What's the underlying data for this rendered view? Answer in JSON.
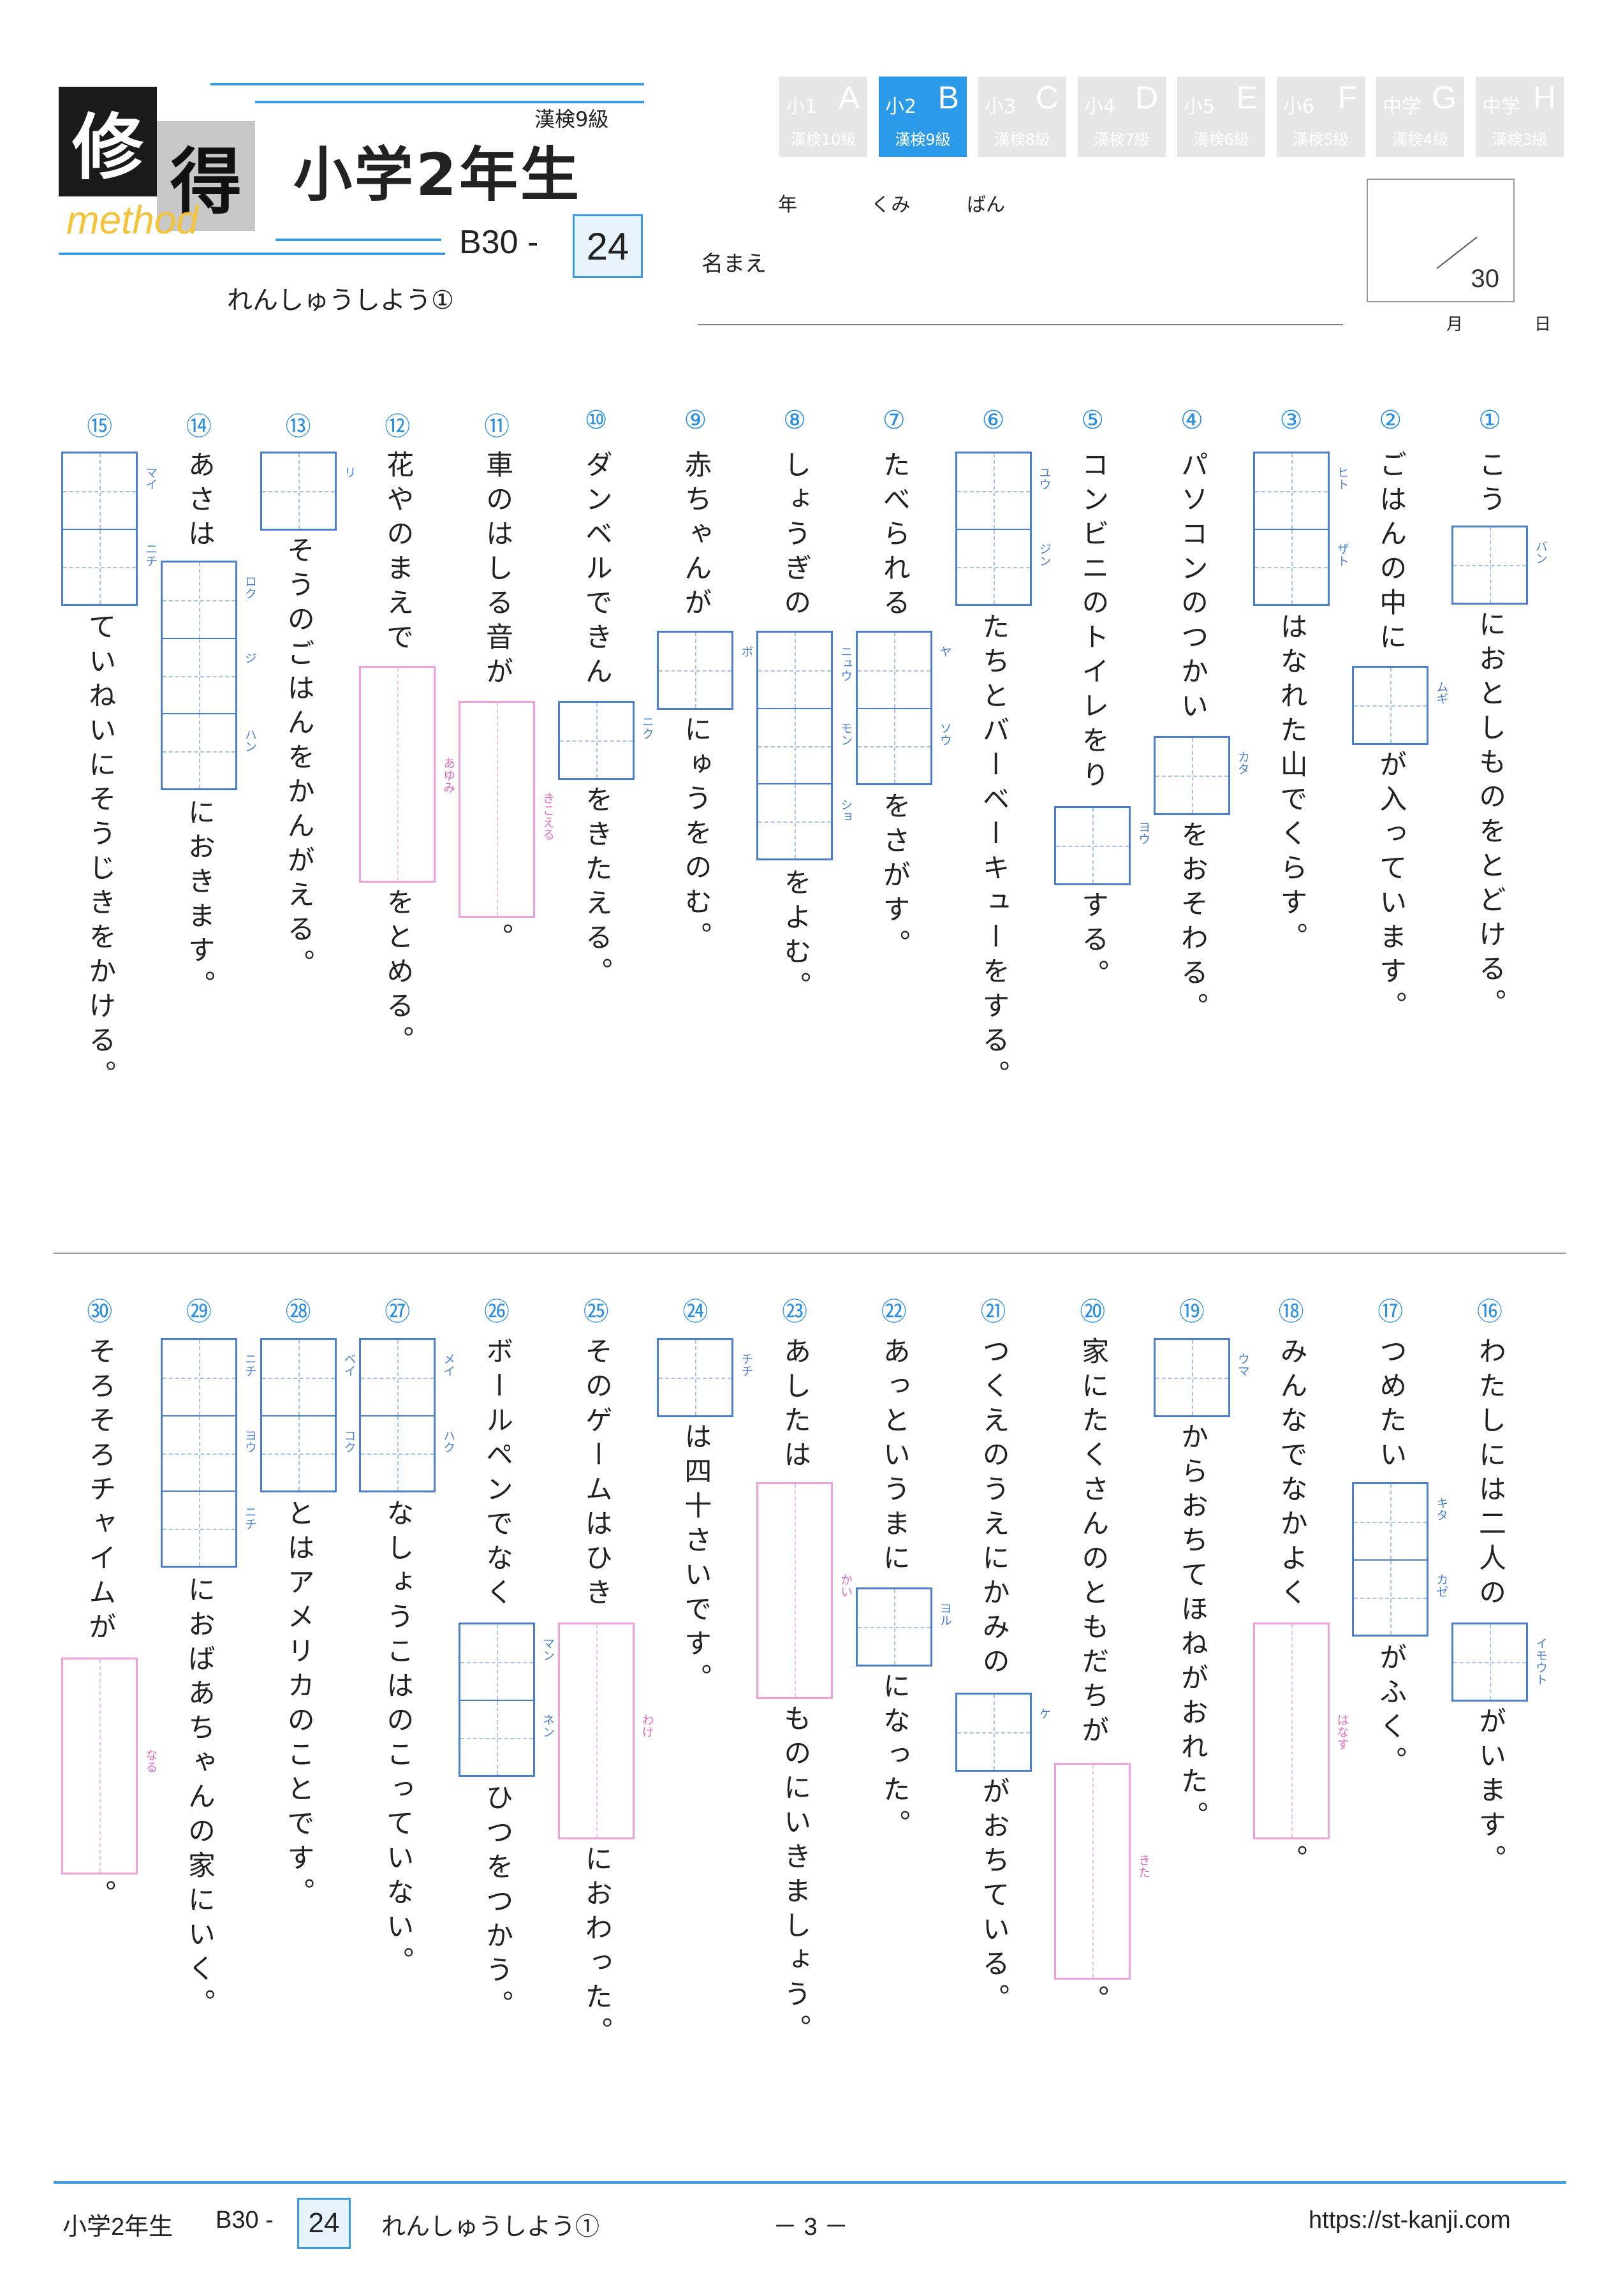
{
  "header": {
    "logo_chars": [
      "修",
      "得"
    ],
    "logo_sub": "method",
    "grade": "小学2年生",
    "kanken_level": "漢検9級",
    "code": "B30 -",
    "code_num": "24",
    "subtitle": "れんしゅうしよう①",
    "name_label": "名まえ",
    "year_label": "年",
    "class_label": "くみ",
    "number_label": "ばん",
    "score_total": "30",
    "month_label": "月",
    "day_label": "日"
  },
  "tabs": [
    {
      "grade": "小1",
      "letter": "A",
      "level": "漢検10級",
      "active": false
    },
    {
      "grade": "小2",
      "letter": "B",
      "level": "漢検9級",
      "active": true
    },
    {
      "grade": "小3",
      "letter": "C",
      "level": "漢検8級",
      "active": false
    },
    {
      "grade": "小4",
      "letter": "D",
      "level": "漢検7級",
      "active": false
    },
    {
      "grade": "小5",
      "letter": "E",
      "level": "漢検6級",
      "active": false
    },
    {
      "grade": "小6",
      "letter": "F",
      "level": "漢検5級",
      "active": false
    },
    {
      "grade": "中学",
      "letter": "G",
      "level": "漢検4級",
      "active": false
    },
    {
      "grade": "中学",
      "letter": "H",
      "level": "漢検3級",
      "active": false
    }
  ],
  "questions": [
    {
      "num": "①",
      "parts": [
        {
          "t": "こう"
        },
        {
          "k": [
            "バン"
          ]
        },
        {
          "t": "におとしものをとどける。"
        }
      ]
    },
    {
      "num": "②",
      "parts": [
        {
          "t": "ごはんの中に"
        },
        {
          "k": [
            "ムギ"
          ]
        },
        {
          "t": "が入っています。"
        }
      ]
    },
    {
      "num": "③",
      "parts": [
        {
          "k": [
            "ヒト",
            "ザト"
          ]
        },
        {
          "t": "はなれた山でくらす。"
        }
      ]
    },
    {
      "num": "④",
      "parts": [
        {
          "t": "パソコンのつかい"
        },
        {
          "k": [
            "カタ"
          ]
        },
        {
          "t": "をおそわる。"
        }
      ]
    },
    {
      "num": "⑤",
      "parts": [
        {
          "t": "コンビニのトイレをり"
        },
        {
          "k": [
            "ヨウ"
          ]
        },
        {
          "t": "する。"
        }
      ]
    },
    {
      "num": "⑥",
      "parts": [
        {
          "k": [
            "ユウ",
            "ジン"
          ]
        },
        {
          "t": "たちとバーベーキューをする。"
        }
      ]
    },
    {
      "num": "⑦",
      "parts": [
        {
          "t": "たべられる"
        },
        {
          "k": [
            "ヤ",
            "ソウ"
          ]
        },
        {
          "t": "をさがす。"
        }
      ]
    },
    {
      "num": "⑧",
      "parts": [
        {
          "t": "しょうぎの"
        },
        {
          "k": [
            "ニュウ",
            "モン",
            "ショ"
          ]
        },
        {
          "t": "をよむ。"
        }
      ]
    },
    {
      "num": "⑨",
      "parts": [
        {
          "t": "赤ちゃんが"
        },
        {
          "k": [
            "ボ"
          ]
        },
        {
          "t": "にゅうをのむ。"
        }
      ]
    },
    {
      "num": "⑩",
      "parts": [
        {
          "t": "ダンベルできん"
        },
        {
          "k": [
            "ニク"
          ]
        },
        {
          "t": "をきたえる。"
        }
      ]
    },
    {
      "num": "⑪",
      "parts": [
        {
          "t": "車のはしる音が"
        },
        {
          "h": "きこえる"
        },
        {
          "t": "。"
        }
      ]
    },
    {
      "num": "⑫",
      "parts": [
        {
          "t": "花やのまえで"
        },
        {
          "h": "あゆみ"
        },
        {
          "t": "をとめる。"
        }
      ]
    },
    {
      "num": "⑬",
      "parts": [
        {
          "k": [
            "リ"
          ]
        },
        {
          "t": "そうのごはんをかんがえる。"
        }
      ]
    },
    {
      "num": "⑭",
      "parts": [
        {
          "t": "あさは"
        },
        {
          "k": [
            "ロク",
            "ジ",
            "ハン"
          ]
        },
        {
          "t": "におきます。"
        }
      ]
    },
    {
      "num": "⑮",
      "parts": [
        {
          "k": [
            "マイ",
            "ニチ"
          ]
        },
        {
          "t": "ていねいにそうじきをかける。"
        }
      ]
    },
    {
      "num": "⑯",
      "parts": [
        {
          "t": "わたしには二人の"
        },
        {
          "k": [
            "イモウト"
          ]
        },
        {
          "t": "がいます。"
        }
      ]
    },
    {
      "num": "⑰",
      "parts": [
        {
          "t": "つめたい"
        },
        {
          "k": [
            "キタ",
            "カゼ"
          ]
        },
        {
          "t": "がふく。"
        }
      ]
    },
    {
      "num": "⑱",
      "parts": [
        {
          "t": "みんなでなかよく"
        },
        {
          "h": "はなす"
        },
        {
          "t": "。"
        }
      ]
    },
    {
      "num": "⑲",
      "parts": [
        {
          "k": [
            "ウマ"
          ]
        },
        {
          "t": "からおちてほねがおれた。"
        }
      ]
    },
    {
      "num": "⑳",
      "parts": [
        {
          "t": "家にたくさんのともだちが"
        },
        {
          "h": "きた"
        },
        {
          "t": "。"
        }
      ]
    },
    {
      "num": "㉑",
      "parts": [
        {
          "t": "つくえのうえにかみの"
        },
        {
          "k": [
            "ケ"
          ]
        },
        {
          "t": "がおちている。"
        }
      ]
    },
    {
      "num": "㉒",
      "parts": [
        {
          "t": "あっというまに"
        },
        {
          "k": [
            "ヨル"
          ]
        },
        {
          "t": "になった。"
        }
      ]
    },
    {
      "num": "㉓",
      "parts": [
        {
          "t": "あしたは"
        },
        {
          "h": "かい"
        },
        {
          "t": "ものにいきましょう。"
        }
      ]
    },
    {
      "num": "㉔",
      "parts": [
        {
          "k": [
            "チチ"
          ]
        },
        {
          "t": "は四十さいです。"
        }
      ]
    },
    {
      "num": "㉕",
      "parts": [
        {
          "t": "そのゲームはひき"
        },
        {
          "h": "わけ"
        },
        {
          "t": "におわった。"
        }
      ]
    },
    {
      "num": "㉖",
      "parts": [
        {
          "t": "ボールペンでなく"
        },
        {
          "k": [
            "マン",
            "ネン"
          ]
        },
        {
          "t": "ひつをつかう。"
        }
      ]
    },
    {
      "num": "㉗",
      "parts": [
        {
          "k": [
            "メイ",
            "ハク"
          ]
        },
        {
          "t": "なしょうこはのこっていない。"
        }
      ]
    },
    {
      "num": "㉘",
      "parts": [
        {
          "k": [
            "ベイ",
            "コク"
          ]
        },
        {
          "t": "とはアメリカのことです。"
        }
      ]
    },
    {
      "num": "㉙",
      "parts": [
        {
          "k": [
            "ニチ",
            "ヨウ",
            "ニチ"
          ]
        },
        {
          "t": "におばあちゃんの家にいく。"
        }
      ]
    },
    {
      "num": "㉚",
      "parts": [
        {
          "t": "そろそろチャイムが"
        },
        {
          "h": "なる"
        },
        {
          "t": "。"
        }
      ]
    }
  ],
  "footer": {
    "grade": "小学2年生",
    "code": "B30 -",
    "code_num": "24",
    "subtitle": "れんしゅうしよう①",
    "page": "－ 3 －",
    "url": "https://st-kanji.com"
  }
}
